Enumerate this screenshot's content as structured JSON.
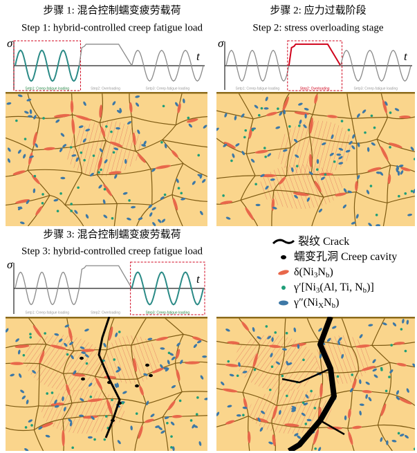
{
  "panels": [
    {
      "title_zh": "步骤 1: 混合控制蠕变疲劳载荷",
      "title_en": "Step 1: hybrid-controlled creep fatigue load",
      "y_axis": "σ",
      "x_axis": "t",
      "phases": [
        "Setp1: Creep-fatigue loading",
        "Step2: Overloading",
        "Setp3: Creep-fatigue loading"
      ]
    },
    {
      "title_zh": "步骤 2: 应力过载阶段",
      "title_en": "Step 2: stress overloading stage",
      "y_axis": "σ",
      "x_axis": "t",
      "phases": [
        "Setp1: Creep-fatigue loading",
        "Step2: Overloading",
        "Setp3: Creep-fatigue loading"
      ]
    },
    {
      "title_zh": "步骤 3: 混合控制蠕变疲劳载荷",
      "title_en": "Step 3: hybrid-controlled creep fatigue load",
      "y_axis": "σ",
      "x_axis": "t",
      "phases": [
        "Setp1: Creep-fatigue loading",
        "Step2: Overloading",
        "Step3: Creep-fatigue loading"
      ]
    }
  ],
  "legend": [
    {
      "parts": [
        {
          "text": "裂纹 Crack"
        }
      ]
    },
    {
      "parts": [
        {
          "text": "蠕变孔洞 Creep cavity"
        }
      ]
    },
    {
      "parts": [
        {
          "text": "δ(Ni"
        },
        {
          "text": "3",
          "sub": true
        },
        {
          "text": "N"
        },
        {
          "text": "b",
          "sub": true
        },
        {
          "text": ")"
        }
      ]
    },
    {
      "parts": [
        {
          "text": "γ′[Ni"
        },
        {
          "text": "3",
          "sub": true
        },
        {
          "text": "(Al, Ti, N"
        },
        {
          "text": "b",
          "sub": true
        },
        {
          "text": ")]"
        }
      ]
    },
    {
      "parts": [
        {
          "text": "γ″(Ni"
        },
        {
          "text": "X",
          "sub": true
        },
        {
          "text": "N"
        },
        {
          "text": "b",
          "sub": true
        },
        {
          "text": ")"
        }
      ]
    }
  ]
}
